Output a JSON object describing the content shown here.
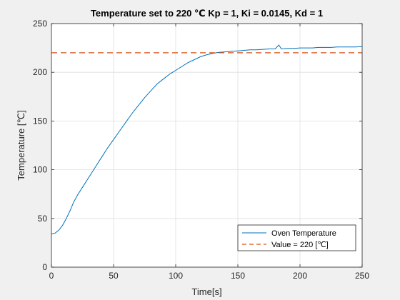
{
  "chart_data": {
    "type": "line",
    "title": "Temperature set to 220 ℃ Kp = 1, Ki = 0.0145, Kd = 1",
    "xlabel": "Time[s]",
    "ylabel": "Temperature [℃]",
    "xlim": [
      0,
      250
    ],
    "ylim": [
      0,
      250
    ],
    "xticks": [
      0,
      50,
      100,
      150,
      200,
      250
    ],
    "yticks": [
      0,
      50,
      100,
      150,
      200,
      250
    ],
    "grid": true,
    "legend_position": "bottom-right",
    "series": [
      {
        "name": "Oven Temperature",
        "color": "#0072bd",
        "style": "solid",
        "x": [
          0,
          3,
          6,
          9,
          12,
          15,
          18,
          21,
          25,
          30,
          35,
          40,
          45,
          50,
          55,
          60,
          65,
          70,
          75,
          80,
          85,
          90,
          95,
          100,
          105,
          110,
          115,
          120,
          125,
          130,
          135,
          140,
          145,
          150,
          155,
          160,
          165,
          170,
          175,
          180,
          183,
          185,
          190,
          195,
          200,
          205,
          210,
          215,
          220,
          225,
          230,
          235,
          240,
          245,
          250
        ],
        "y": [
          34,
          35,
          38,
          43,
          50,
          58,
          67,
          74,
          82,
          92,
          102,
          112,
          122,
          131,
          140,
          149,
          158,
          166,
          174,
          181,
          188,
          193,
          198,
          202,
          206,
          210,
          213,
          216,
          218,
          219.5,
          220.5,
          221,
          221.5,
          222,
          222.5,
          223,
          223,
          223.5,
          224,
          224,
          228,
          224,
          224.5,
          224.5,
          225,
          225,
          225,
          225.5,
          225.5,
          225.5,
          226,
          226,
          226,
          226,
          226.5
        ]
      },
      {
        "name": "Value = 220 [℃]",
        "color": "#d95319",
        "style": "dashed",
        "x": [
          0,
          250
        ],
        "y": [
          220,
          220
        ]
      }
    ]
  }
}
